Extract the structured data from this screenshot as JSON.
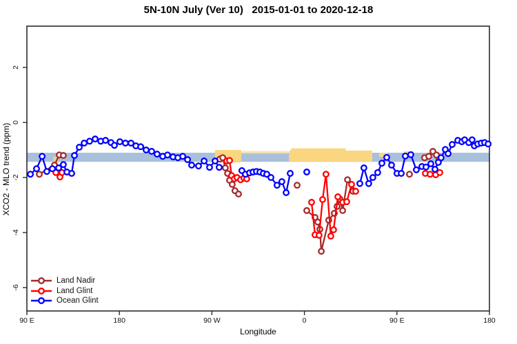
{
  "title": "5N-10N July (Ver 10)   2015-01-01 to 2020-12-18",
  "legend": {
    "entries": [
      {
        "label": "Land Nadir",
        "color": "#A52A2A"
      },
      {
        "label": "Land Glint",
        "color": "#FF0000"
      },
      {
        "label": "Ocean Glint",
        "color": "#0000FF"
      }
    ]
  },
  "chart_data": {
    "type": "line",
    "title": "5N-10N July (Ver 10)   2015-01-01 to 2020-12-18",
    "xlabel": "Longitude",
    "ylabel": "XCO2 - MLO trend (ppm)",
    "x_axis_note": "x stored as degrees eastward from 90E; axis spans 450 degrees (90E>180>90W>0>90E>180)",
    "xlim_deg": [
      0,
      450
    ],
    "ylim": [
      -6.85,
      3.5
    ],
    "x_ticks": [
      {
        "deg": 0,
        "label": "90 E"
      },
      {
        "deg": 90,
        "label": "180"
      },
      {
        "deg": 180,
        "label": "90 W"
      },
      {
        "deg": 270,
        "label": "0"
      },
      {
        "deg": 360,
        "label": "90 E"
      },
      {
        "deg": 450,
        "label": "180"
      }
    ],
    "y_ticks": [
      2,
      0,
      -2,
      -4,
      -6
    ],
    "grid": false,
    "legend_position": "bottom-left-inside",
    "band": {
      "name": "reference-band",
      "deg": [
        0,
        450
      ],
      "ppm": [
        -1.1,
        -1.43
      ],
      "color": "#A9C0DD"
    },
    "patches": {
      "color": "#FBD680",
      "rects": [
        {
          "deg": [
            183.0,
            208.5
          ],
          "ppm": [
            -1.0,
            -1.45
          ],
          "opacity": 1
        },
        {
          "deg": [
            209.0,
            254.0
          ],
          "ppm": [
            -1.03,
            -1.15
          ],
          "opacity": 0.55
        },
        {
          "deg": [
            254.9,
            336.0
          ],
          "ppm": [
            -1.02,
            -1.42
          ],
          "opacity": 1
        },
        {
          "deg": [
            257.0,
            310.0
          ],
          "ppm": [
            -0.94,
            -1.03
          ],
          "opacity": 1
        },
        {
          "deg": [
            342.7,
            350.7
          ],
          "ppm": [
            -1.1,
            -1.25
          ],
          "opacity": 1
        },
        {
          "deg": [
            366.8,
            376.2
          ],
          "ppm": [
            -1.05,
            -1.2
          ],
          "opacity": 1
        },
        {
          "deg": [
            386.3,
            389.7
          ],
          "ppm": [
            -1.15,
            -1.3
          ],
          "opacity": 1
        },
        {
          "deg": [
            25.5,
            30.9
          ],
          "ppm": [
            -1.25,
            -1.5
          ],
          "opacity": 0.8
        }
      ]
    },
    "series": [
      {
        "name": "Land Nadir",
        "color": "#A52A2A",
        "groups": [
          [
            [
              12.1,
              -1.88
            ],
            [
              26.8,
              -1.55
            ],
            [
              31.5,
              -1.18
            ],
            [
              35.5,
              -1.2
            ]
          ],
          [
            [
              187.8,
              -1.33
            ],
            [
              190.5,
              -1.28
            ],
            [
              193.1,
              -1.65
            ],
            [
              195.2,
              -1.85
            ],
            [
              197.2,
              -2.1
            ],
            [
              199.8,
              -2.25
            ],
            [
              202.5,
              -2.48
            ],
            [
              205.9,
              -2.6
            ]
          ],
          [
            [
              262.9,
              -2.28
            ]
          ],
          [
            [
              272.3,
              -3.2
            ],
            [
              280.3,
              -3.45
            ],
            [
              283.0,
              -3.62
            ],
            [
              285.0,
              -3.88
            ],
            [
              286.4,
              -4.68
            ],
            [
              293.7,
              -3.55
            ],
            [
              299.1,
              -3.3
            ],
            [
              301.8,
              -3.05
            ],
            [
              304.5,
              -2.78
            ],
            [
              307.2,
              -3.2
            ],
            [
              311.9,
              -2.08
            ],
            [
              317.2,
              -2.5
            ]
          ],
          [
            [
              372.2,
              -1.88
            ]
          ],
          [
            [
              386.9,
              -1.28
            ],
            [
              391.0,
              -1.23
            ],
            [
              395.0,
              -1.05
            ],
            [
              398.4,
              -1.18
            ],
            [
              401.0,
              -1.35
            ]
          ]
        ]
      },
      {
        "name": "Land Glint",
        "color": "#FF0000",
        "groups": [
          [
            [
              28.2,
              -1.82
            ],
            [
              32.2,
              -1.98
            ],
            [
              34.2,
              -1.82
            ]
          ],
          [
            [
              194.5,
              -1.4
            ],
            [
              197.2,
              -1.38
            ],
            [
              199.2,
              -1.93
            ],
            [
              201.8,
              -2.05
            ],
            [
              204.5,
              -2.0
            ],
            [
              207.9,
              -2.08
            ],
            [
              211.2,
              -2.02
            ],
            [
              213.9,
              -2.05
            ]
          ],
          [
            [
              277.0,
              -2.9
            ],
            [
              280.3,
              -4.08
            ],
            [
              284.3,
              -4.1
            ],
            [
              287.7,
              -2.8
            ],
            [
              291.0,
              -1.88
            ],
            [
              295.7,
              -4.13
            ],
            [
              298.4,
              -3.9
            ],
            [
              302.5,
              -2.7
            ],
            [
              307.2,
              -2.9
            ],
            [
              311.2,
              -2.88
            ],
            [
              315.9,
              -2.25
            ],
            [
              319.9,
              -2.5
            ]
          ],
          [
            [
              387.6,
              -1.85
            ],
            [
              392.3,
              -1.88
            ],
            [
              397.7,
              -1.9
            ],
            [
              401.7,
              -1.82
            ]
          ]
        ]
      },
      {
        "name": "Ocean Glint",
        "color": "#0000FF",
        "groups": [
          [
            [
              3.4,
              -1.88
            ],
            [
              9.4,
              -1.68
            ],
            [
              14.8,
              -1.23
            ],
            [
              19.4,
              -1.78
            ],
            [
              24.8,
              -1.68
            ],
            [
              30.9,
              -1.65
            ],
            [
              35.5,
              -1.53
            ],
            [
              38.9,
              -1.8
            ],
            [
              43.6,
              -1.85
            ],
            [
              46.3,
              -1.2
            ],
            [
              51.0,
              -0.9
            ],
            [
              55.7,
              -0.75
            ],
            [
              61.0,
              -0.68
            ],
            [
              66.4,
              -0.6
            ],
            [
              71.8,
              -0.68
            ],
            [
              76.5,
              -0.65
            ],
            [
              81.8,
              -0.73
            ],
            [
              85.2,
              -0.83
            ],
            [
              90.5,
              -0.7
            ],
            [
              95.9,
              -0.75
            ],
            [
              101.3,
              -0.75
            ],
            [
              106.0,
              -0.85
            ],
            [
              110.7,
              -0.88
            ],
            [
              116.0,
              -1.0
            ],
            [
              121.4,
              -1.05
            ],
            [
              126.7,
              -1.15
            ],
            [
              132.1,
              -1.23
            ],
            [
              136.8,
              -1.18
            ],
            [
              142.2,
              -1.25
            ],
            [
              146.9,
              -1.28
            ],
            [
              151.6,
              -1.23
            ],
            [
              156.3,
              -1.35
            ],
            [
              160.3,
              -1.55
            ],
            [
              167.0,
              -1.58
            ],
            [
              172.4,
              -1.4
            ],
            [
              177.7,
              -1.63
            ],
            [
              183.1,
              -1.4
            ],
            [
              187.1,
              -1.63
            ]
          ],
          [
            [
              209.2,
              -1.75
            ],
            [
              212.6,
              -1.88
            ],
            [
              216.6,
              -1.83
            ],
            [
              220.0,
              -1.8
            ],
            [
              223.3,
              -1.78
            ],
            [
              226.7,
              -1.8
            ],
            [
              230.0,
              -1.85
            ],
            [
              233.4,
              -1.88
            ],
            [
              237.4,
              -2.0
            ],
            [
              243.4,
              -2.28
            ],
            [
              248.1,
              -2.15
            ],
            [
              252.2,
              -2.55
            ],
            [
              256.2,
              -1.85
            ]
          ],
          [
            [
              272.3,
              -1.8
            ]
          ],
          [
            [
              323.9,
              -2.22
            ],
            [
              327.9,
              -1.65
            ],
            [
              332.6,
              -2.22
            ],
            [
              336.6,
              -2.0
            ],
            [
              341.3,
              -1.82
            ],
            [
              345.4,
              -1.48
            ],
            [
              350.1,
              -1.27
            ],
            [
              354.8,
              -1.55
            ],
            [
              360.1,
              -1.85
            ],
            [
              364.2,
              -1.85
            ],
            [
              368.2,
              -1.22
            ],
            [
              373.5,
              -1.17
            ],
            [
              378.9,
              -1.72
            ],
            [
              384.3,
              -1.6
            ],
            [
              388.3,
              -1.62
            ],
            [
              393.0,
              -1.5
            ],
            [
              397.0,
              -1.7
            ],
            [
              400.3,
              -1.45
            ],
            [
              403.0,
              -1.28
            ],
            [
              407.1,
              -0.98
            ],
            [
              409.8,
              -1.13
            ],
            [
              413.8,
              -0.8
            ],
            [
              419.2,
              -0.65
            ],
            [
              423.2,
              -0.7
            ],
            [
              425.9,
              -0.63
            ],
            [
              429.9,
              -0.73
            ],
            [
              433.2,
              -0.63
            ],
            [
              435.3,
              -0.85
            ],
            [
              438.6,
              -0.78
            ],
            [
              442.0,
              -0.75
            ],
            [
              445.3,
              -0.73
            ],
            [
              448.7,
              -0.78
            ]
          ]
        ]
      }
    ]
  }
}
